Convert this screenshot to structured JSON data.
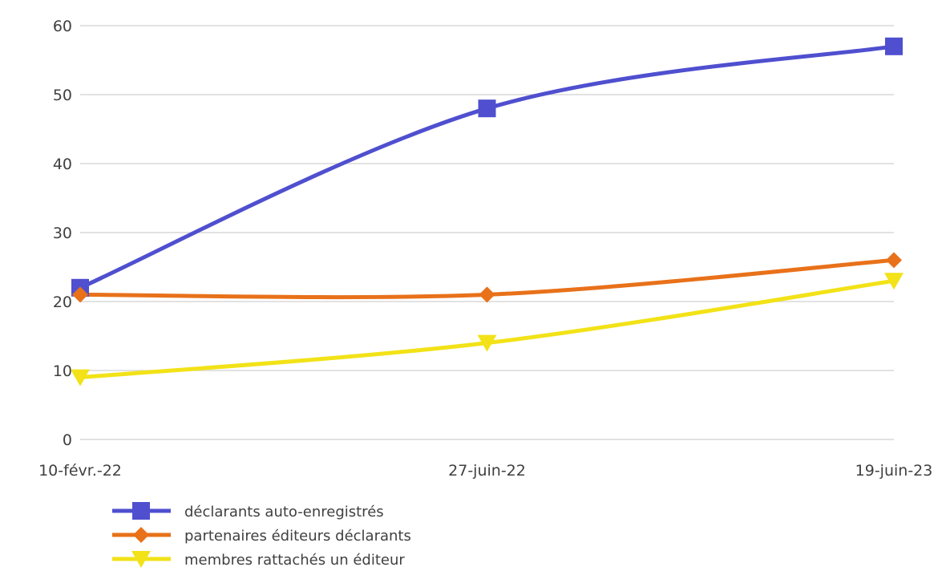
{
  "chart_data": {
    "type": "line",
    "smooth": true,
    "categories": [
      "10-févr.-22",
      "27-juin-22",
      "19-juin-23"
    ],
    "ylim": [
      0,
      60
    ],
    "yticks": [
      0,
      10,
      20,
      30,
      40,
      50,
      60
    ],
    "grid": true,
    "legend_position": "bottom-left",
    "series": [
      {
        "name": "déclarants auto-enregistrés",
        "values": [
          22,
          48,
          57
        ],
        "color": "#4f4fcf",
        "marker": "square"
      },
      {
        "name": "partenaires éditeurs déclarants",
        "values": [
          21,
          21,
          26
        ],
        "color": "#e8711a",
        "marker": "diamond"
      },
      {
        "name": "membres rattachés un éditeur",
        "values": [
          9,
          14,
          23
        ],
        "color": "#f2e217",
        "marker": "triangle-down"
      }
    ]
  }
}
